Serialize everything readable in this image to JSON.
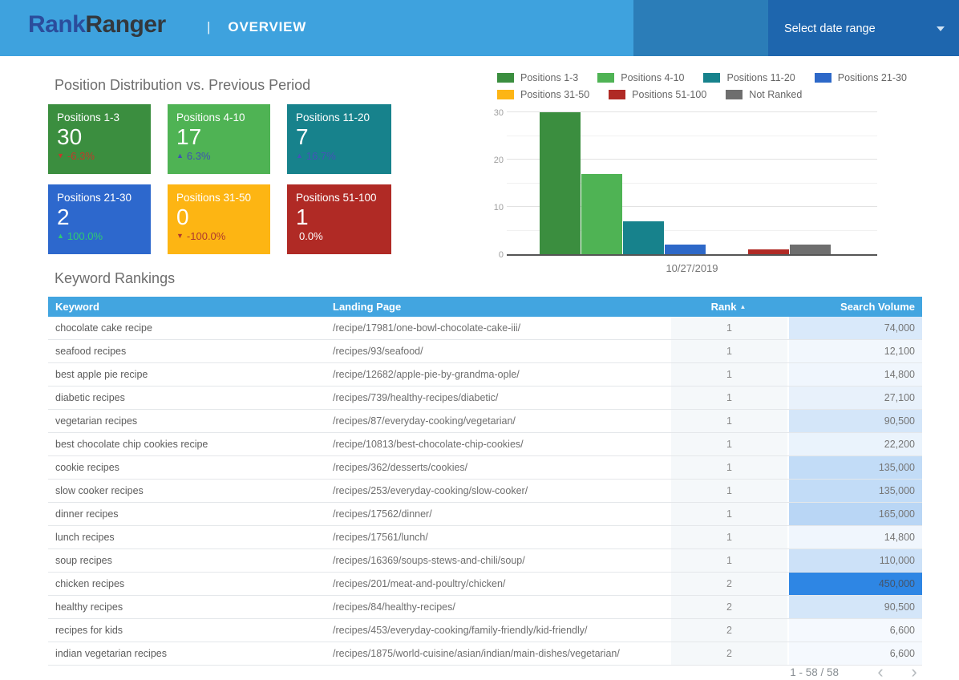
{
  "header": {
    "brand_part1": "Rank",
    "brand_part2": "Ranger",
    "separator": "|",
    "page_title": "OVERVIEW",
    "date_range_label": "Select date range",
    "icons": {
      "date_caret": "caret-down"
    }
  },
  "summary": {
    "section_title": "Position Distribution vs. Previous Period",
    "cards": [
      {
        "label": "Positions 1-3",
        "value": "30",
        "change": "-6.3%",
        "arrow": "▼",
        "direction": "down",
        "bg": "#3b8e3f",
        "change_color": "#c2392b"
      },
      {
        "label": "Positions 4-10",
        "value": "17",
        "change": "6.3%",
        "arrow": "▲",
        "direction": "up",
        "bg": "#4fb354",
        "change_color": "#3f51b5"
      },
      {
        "label": "Positions 11-20",
        "value": "7",
        "change": "16.7%",
        "arrow": "▲",
        "direction": "up",
        "bg": "#17828c",
        "change_color": "#4553b8"
      },
      {
        "label": "Positions 21-30",
        "value": "2",
        "change": "100.0%",
        "arrow": "▲",
        "direction": "up",
        "bg": "#2d68cd",
        "change_color": "#2ecc71"
      },
      {
        "label": "Positions 31-50",
        "value": "0",
        "change": "-100.0%",
        "arrow": "▼",
        "direction": "down",
        "bg": "#fdb513",
        "change_color": "#b03a2e"
      },
      {
        "label": "Positions 51-100",
        "value": "1",
        "change": "0.0%",
        "arrow": "",
        "direction": "none",
        "bg": "#b02a25",
        "change_color": "#ffffff"
      }
    ]
  },
  "chart_data": {
    "type": "bar",
    "x": [
      "10/27/2019"
    ],
    "series": [
      {
        "name": "Positions 1-3",
        "color": "#3b8e3f",
        "values": [
          30
        ]
      },
      {
        "name": "Positions 4-10",
        "color": "#4fb354",
        "values": [
          17
        ]
      },
      {
        "name": "Positions 11-20",
        "color": "#17828c",
        "values": [
          7
        ]
      },
      {
        "name": "Positions 21-30",
        "color": "#2d68c8",
        "values": [
          2
        ]
      },
      {
        "name": "Positions 31-50",
        "color": "#fdb515",
        "values": [
          0
        ]
      },
      {
        "name": "Positions 51-100",
        "color": "#b02a25",
        "values": [
          1
        ]
      },
      {
        "name": "Not Ranked",
        "color": "#6e6e6e",
        "values": [
          2
        ]
      }
    ],
    "ylim": [
      0,
      30
    ],
    "yticks": [
      0,
      10,
      20,
      30
    ],
    "grid": true,
    "legend_position": "top",
    "xlabel": "",
    "ylabel": ""
  },
  "table": {
    "section_title": "Keyword Rankings",
    "columns": {
      "keyword": "Keyword",
      "landing_page": "Landing Page",
      "rank": "Rank",
      "search_volume": "Search Volume"
    },
    "sort_icon": "▲",
    "rows": [
      {
        "keyword": "chocolate cake recipe",
        "landing_page": "/recipe/17981/one-bowl-chocolate-cake-iii/",
        "rank": "1",
        "search_volume": "74,000",
        "sv_bg": "#d9e9fa",
        "sv_text": "#757575"
      },
      {
        "keyword": "seafood recipes",
        "landing_page": "/recipes/93/seafood/",
        "rank": "1",
        "search_volume": "12,100",
        "sv_bg": "#f2f7fd",
        "sv_text": "#757575"
      },
      {
        "keyword": "best apple pie recipe",
        "landing_page": "/recipe/12682/apple-pie-by-grandma-ople/",
        "rank": "1",
        "search_volume": "14,800",
        "sv_bg": "#f0f6fd",
        "sv_text": "#757575"
      },
      {
        "keyword": "diabetic recipes",
        "landing_page": "/recipes/739/healthy-recipes/diabetic/",
        "rank": "1",
        "search_volume": "27,100",
        "sv_bg": "#e8f1fb",
        "sv_text": "#757575"
      },
      {
        "keyword": "vegetarian recipes",
        "landing_page": "/recipes/87/everyday-cooking/vegetarian/",
        "rank": "1",
        "search_volume": "90,500",
        "sv_bg": "#d4e6f9",
        "sv_text": "#757575"
      },
      {
        "keyword": "best chocolate chip cookies recipe",
        "landing_page": "/recipe/10813/best-chocolate-chip-cookies/",
        "rank": "1",
        "search_volume": "22,200",
        "sv_bg": "#eaf3fc",
        "sv_text": "#757575"
      },
      {
        "keyword": "cookie recipes",
        "landing_page": "/recipes/362/desserts/cookies/",
        "rank": "1",
        "search_volume": "135,000",
        "sv_bg": "#c2dcf7",
        "sv_text": "#757575"
      },
      {
        "keyword": "slow cooker recipes",
        "landing_page": "/recipes/253/everyday-cooking/slow-cooker/",
        "rank": "1",
        "search_volume": "135,000",
        "sv_bg": "#c2dcf7",
        "sv_text": "#757575"
      },
      {
        "keyword": "dinner recipes",
        "landing_page": "/recipes/17562/dinner/",
        "rank": "1",
        "search_volume": "165,000",
        "sv_bg": "#b9d6f5",
        "sv_text": "#757575"
      },
      {
        "keyword": "lunch recipes",
        "landing_page": "/recipes/17561/lunch/",
        "rank": "1",
        "search_volume": "14,800",
        "sv_bg": "#f0f6fd",
        "sv_text": "#757575"
      },
      {
        "keyword": "soup recipes",
        "landing_page": "/recipes/16369/soups-stews-and-chili/soup/",
        "rank": "1",
        "search_volume": "110,000",
        "sv_bg": "#cce1f8",
        "sv_text": "#757575"
      },
      {
        "keyword": "chicken recipes",
        "landing_page": "/recipes/201/meat-and-poultry/chicken/",
        "rank": "2",
        "search_volume": "450,000",
        "sv_bg": "#2e86e4",
        "sv_text": "#44546a"
      },
      {
        "keyword": "healthy recipes",
        "landing_page": "/recipes/84/healthy-recipes/",
        "rank": "2",
        "search_volume": "90,500",
        "sv_bg": "#d4e6f9",
        "sv_text": "#757575"
      },
      {
        "keyword": "recipes for kids",
        "landing_page": "/recipes/453/everyday-cooking/family-friendly/kid-friendly/",
        "rank": "2",
        "search_volume": "6,600",
        "sv_bg": "#f5f9fe",
        "sv_text": "#757575"
      },
      {
        "keyword": "indian vegetarian recipes",
        "landing_page": "/recipes/1875/world-cuisine/asian/indian/main-dishes/vegetarian/",
        "rank": "2",
        "search_volume": "6,600",
        "sv_bg": "#f5f9fe",
        "sv_text": "#757575"
      }
    ]
  },
  "pagination": {
    "range_text": "1 - 58 / 58",
    "prev_icon": "‹",
    "next_icon": "›"
  }
}
